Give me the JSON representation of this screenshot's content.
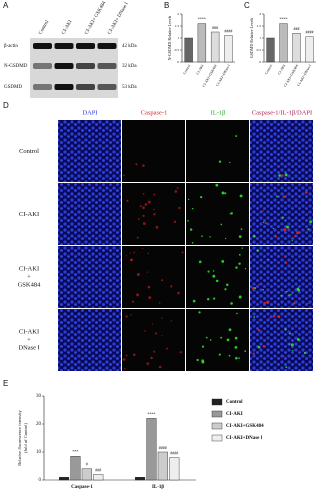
{
  "panels": {
    "A": {
      "letter": "A",
      "lanes": [
        "Control",
        "CI-AKI",
        "CI-AKI+ GSK484",
        "CI-AKI+ DNase Ⅰ"
      ],
      "rows": [
        {
          "protein": "β-actin",
          "size": "42 kDa"
        },
        {
          "protein": "N-GSDMD",
          "size": "32 kDa"
        },
        {
          "protein": "GSDMD",
          "size": "53 kDa"
        }
      ]
    },
    "B": {
      "letter": "B"
    },
    "C": {
      "letter": "C"
    },
    "D": {
      "letter": "D",
      "columns": [
        "DAPI",
        "Caspase-1",
        "IL-1β",
        "Caspase-1/IL-1β/DAPI"
      ],
      "rows": [
        "Control",
        "CI-AKI",
        "CI-AKI + GSK484",
        "CI-AKI + DNase Ⅰ"
      ]
    },
    "E": {
      "letter": "E"
    }
  },
  "chart_data": [
    {
      "type": "bar",
      "ylabel": "N-GSDMD Relative Levels",
      "categories": [
        "Control",
        "CI-AKI",
        "CI-AKI+GSK484",
        "CI-AKI+DNase Ⅰ"
      ],
      "values": [
        1.0,
        1.6,
        1.25,
        1.1
      ],
      "colors": [
        "#666666",
        "#bbbbbb",
        "#dddddd",
        "#eeeeee"
      ],
      "ylim": [
        0,
        2
      ],
      "yticks": [
        0,
        0.5,
        1,
        1.5,
        2
      ],
      "annotations": [
        {
          "category": "CI-AKI",
          "text": "****"
        },
        {
          "category": "CI-AKI+GSK484",
          "text": "###"
        },
        {
          "category": "CI-AKI+DNase Ⅰ",
          "text": "####"
        }
      ]
    },
    {
      "type": "bar",
      "ylabel": "GSDMD Relative Levels",
      "categories": [
        "Control",
        "CI-AKI",
        "CI-AKI+GSK484",
        "CI-AKI+DNase Ⅰ"
      ],
      "values": [
        1.0,
        1.6,
        1.2,
        1.05
      ],
      "colors": [
        "#666666",
        "#bbbbbb",
        "#dddddd",
        "#eeeeee"
      ],
      "ylim": [
        0,
        2
      ],
      "yticks": [
        0,
        0.5,
        1,
        1.5,
        2
      ],
      "annotations": [
        {
          "category": "CI-AKI",
          "text": "****"
        },
        {
          "category": "CI-AKI+GSK484",
          "text": "###"
        },
        {
          "category": "CI-AKI+DNase Ⅰ",
          "text": "####"
        }
      ]
    },
    {
      "type": "grouped-bar",
      "ylabel_lines": [
        "Relative fluorescence intensity",
        "(fold of Control)"
      ],
      "categories": [
        "Caspase-1",
        "IL-1β"
      ],
      "series": [
        {
          "name": "Control",
          "color": "#222222",
          "values": [
            1,
            1
          ]
        },
        {
          "name": "CI-AKI",
          "color": "#999999",
          "values": [
            8.5,
            22
          ]
        },
        {
          "name": "CI-AKI+GSK484",
          "color": "#cccccc",
          "values": [
            4,
            10
          ]
        },
        {
          "name": "CI-AKI+DNase Ⅰ",
          "color": "#eeeeee",
          "values": [
            2,
            8
          ]
        }
      ],
      "ylim": [
        0,
        30
      ],
      "yticks": [
        0,
        10,
        20,
        30
      ],
      "annotations": [
        {
          "category": "Caspase-1",
          "series": "CI-AKI",
          "text": "***"
        },
        {
          "category": "Caspase-1",
          "series": "CI-AKI+GSK484",
          "text": "#"
        },
        {
          "category": "Caspase-1",
          "series": "CI-AKI+DNase Ⅰ",
          "text": "###"
        },
        {
          "category": "IL-1β",
          "series": "CI-AKI",
          "text": "****"
        },
        {
          "category": "IL-1β",
          "series": "CI-AKI+GSK484",
          "text": "####"
        },
        {
          "category": "IL-1β",
          "series": "CI-AKI+DNase Ⅰ",
          "text": "####"
        }
      ]
    }
  ]
}
